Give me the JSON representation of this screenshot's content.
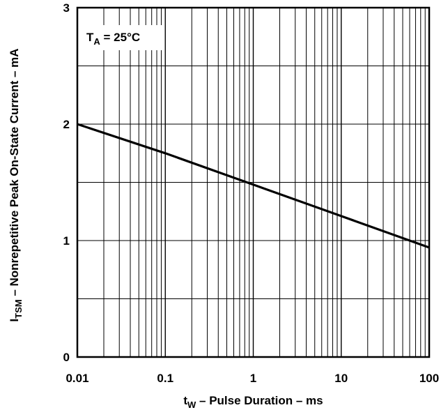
{
  "chart_data": {
    "type": "line",
    "x_scale": "log",
    "xlim": [
      0.01,
      100
    ],
    "ylim": [
      0,
      3
    ],
    "x_ticks": [
      {
        "value": 0.01,
        "label": "0.01"
      },
      {
        "value": 0.1,
        "label": "0.1"
      },
      {
        "value": 1,
        "label": "1"
      },
      {
        "value": 10,
        "label": "10"
      },
      {
        "value": 100,
        "label": "100"
      }
    ],
    "y_ticks": [
      {
        "value": 0,
        "label": "0"
      },
      {
        "value": 1,
        "label": "1"
      },
      {
        "value": 2,
        "label": "2"
      },
      {
        "value": 3,
        "label": "3"
      }
    ],
    "y_minor_gridlines": [
      0.5,
      1.5,
      2.5
    ],
    "grid": true,
    "xlabel": {
      "main": "t",
      "sub": "W",
      "rest": " – Pulse Duration – ms"
    },
    "ylabel": {
      "main": "I",
      "sub": "TSM",
      "rest": " – Nonrepetitive Peak On-State Current – mA"
    },
    "annotation": {
      "main": "T",
      "sub": "A",
      "rest": " = 25°C"
    },
    "series": [
      {
        "x": [
          0.01,
          0.1,
          1,
          10,
          100
        ],
        "y": [
          2.0,
          1.75,
          1.48,
          1.21,
          0.94
        ]
      }
    ]
  }
}
